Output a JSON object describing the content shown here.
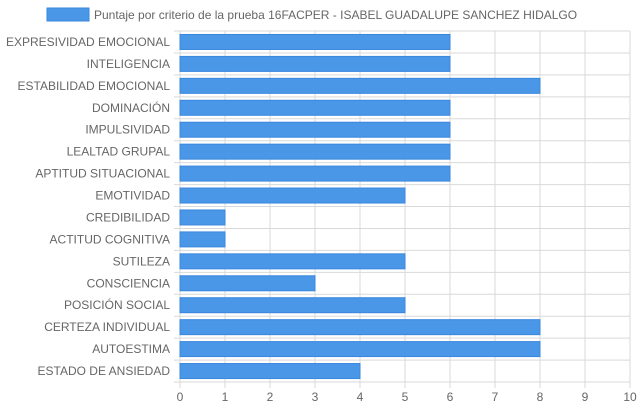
{
  "chart_data": {
    "type": "bar",
    "orientation": "horizontal",
    "categories": [
      "EXPRESIVIDAD EMOCIONAL",
      "INTELIGENCIA",
      "ESTABILIDAD EMOCIONAL",
      "DOMINACIÓN",
      "IMPULSIVIDAD",
      "LEALTAD GRUPAL",
      "APTITUD SITUACIONAL",
      "EMOTIVIDAD",
      "CREDIBILIDAD",
      "ACTITUD COGNITIVA",
      "SUTILEZA",
      "CONSCIENCIA",
      "POSICIÓN SOCIAL",
      "CERTEZA INDIVIDUAL",
      "AUTOESTIMA",
      "ESTADO DE ANSIEDAD"
    ],
    "series": [
      {
        "name": "Puntaje por criterio de la prueba 16FACPER - ISABEL GUADALUPE SANCHEZ HIDALGO",
        "values": [
          6,
          6,
          8,
          6,
          6,
          6,
          6,
          5,
          1,
          1,
          5,
          3,
          5,
          8,
          8,
          4
        ]
      }
    ],
    "xlim": [
      0,
      10
    ],
    "xticks": [
      "0",
      "1",
      "2",
      "3",
      "4",
      "5",
      "6",
      "7",
      "8",
      "9",
      "10"
    ],
    "grid": true,
    "legend_position": "top"
  },
  "colors": {
    "bar_fill": "#4a97e8",
    "bar_stroke": "#3a87de",
    "grid": "#d9d9d9",
    "text": "#666666"
  }
}
